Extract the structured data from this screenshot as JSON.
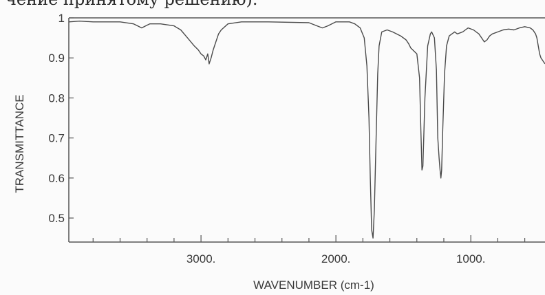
{
  "header_fragment": "чение принятому решению).",
  "chart_data": {
    "type": "line",
    "title": "",
    "xlabel": "WAVENUMBER (cm-1)",
    "ylabel": "TRANSMITTANCE",
    "x_reversed": true,
    "xlim": [
      3980,
      450
    ],
    "ylim": [
      0.44,
      1.0
    ],
    "x_ticks": [
      3000,
      2000,
      1000
    ],
    "x_tick_labels": [
      "3000.",
      "2000.",
      "1000."
    ],
    "y_ticks": [
      1,
      0.9,
      0.8,
      0.7,
      0.6,
      0.5
    ],
    "y_tick_labels": [
      "1",
      "0.9",
      "0.8",
      "0.7",
      "0.6",
      "0.5"
    ],
    "x_minor_step": 200,
    "grid": false,
    "series": [
      {
        "color": "#4a4a4a",
        "x": [
          3980,
          3900,
          3800,
          3600,
          3500,
          3470,
          3440,
          3410,
          3380,
          3300,
          3200,
          3150,
          3100,
          3050,
          3020,
          3000,
          2980,
          2965,
          2950,
          2940,
          2925,
          2910,
          2890,
          2870,
          2850,
          2800,
          2700,
          2500,
          2200,
          2140,
          2100,
          2060,
          2000,
          1900,
          1860,
          1820,
          1790,
          1770,
          1755,
          1745,
          1735,
          1725,
          1715,
          1700,
          1690,
          1680,
          1660,
          1620,
          1580,
          1520,
          1480,
          1460,
          1445,
          1430,
          1415,
          1400,
          1380,
          1370,
          1362,
          1355,
          1340,
          1320,
          1300,
          1290,
          1270,
          1255,
          1245,
          1235,
          1228,
          1222,
          1216,
          1208,
          1195,
          1180,
          1160,
          1140,
          1120,
          1100,
          1060,
          1040,
          1020,
          980,
          940,
          920,
          900,
          880,
          860,
          840,
          800,
          760,
          720,
          680,
          640,
          600,
          560,
          540,
          520,
          510,
          500,
          490,
          480,
          470,
          460,
          450
        ],
        "y": [
          0.99,
          0.992,
          0.99,
          0.99,
          0.985,
          0.98,
          0.975,
          0.98,
          0.985,
          0.985,
          0.98,
          0.97,
          0.95,
          0.93,
          0.92,
          0.91,
          0.905,
          0.895,
          0.91,
          0.885,
          0.9,
          0.92,
          0.94,
          0.96,
          0.97,
          0.985,
          0.99,
          0.99,
          0.988,
          0.98,
          0.975,
          0.98,
          0.99,
          0.99,
          0.985,
          0.975,
          0.95,
          0.88,
          0.75,
          0.6,
          0.47,
          0.45,
          0.52,
          0.73,
          0.86,
          0.93,
          0.965,
          0.97,
          0.965,
          0.955,
          0.945,
          0.935,
          0.925,
          0.92,
          0.915,
          0.91,
          0.85,
          0.72,
          0.62,
          0.63,
          0.8,
          0.93,
          0.96,
          0.965,
          0.95,
          0.87,
          0.7,
          0.65,
          0.62,
          0.6,
          0.62,
          0.72,
          0.86,
          0.93,
          0.955,
          0.96,
          0.965,
          0.96,
          0.965,
          0.97,
          0.975,
          0.97,
          0.96,
          0.95,
          0.94,
          0.945,
          0.955,
          0.96,
          0.965,
          0.97,
          0.972,
          0.97,
          0.975,
          0.978,
          0.975,
          0.97,
          0.96,
          0.95,
          0.93,
          0.91,
          0.9,
          0.895,
          0.89,
          0.885
        ]
      }
    ]
  }
}
